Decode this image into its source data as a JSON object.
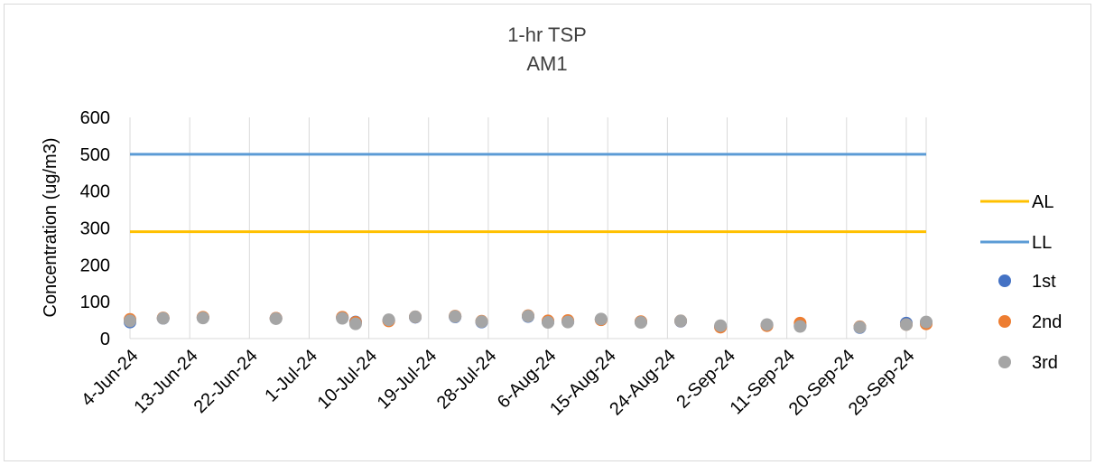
{
  "chart_data": {
    "type": "scatter",
    "title": "1-hr TSP",
    "subtitle": "AM1",
    "xlabel": "",
    "ylabel": "Concentration (ug/m3)",
    "ylim": [
      0,
      600
    ],
    "yticks": [
      0,
      100,
      200,
      300,
      400,
      500,
      600
    ],
    "xlim": [
      "2024-06-04",
      "2024-10-02"
    ],
    "xtick_labels": [
      "4-Jun-24",
      "13-Jun-24",
      "22-Jun-24",
      "1-Jul-24",
      "10-Jul-24",
      "19-Jul-24",
      "28-Jul-24",
      "6-Aug-24",
      "15-Aug-24",
      "24-Aug-24",
      "2-Sep-24",
      "11-Sep-24",
      "20-Sep-24",
      "29-Sep-24"
    ],
    "xtick_dates": [
      "2024-06-04",
      "2024-06-13",
      "2024-06-22",
      "2024-07-01",
      "2024-07-10",
      "2024-07-19",
      "2024-07-28",
      "2024-08-06",
      "2024-08-15",
      "2024-08-24",
      "2024-09-02",
      "2024-09-11",
      "2024-09-20",
      "2024-09-29"
    ],
    "grid": "vertical",
    "legend_position": "right",
    "lines": [
      {
        "name": "AL",
        "value": 290,
        "color": "#FFC000"
      },
      {
        "name": "LL",
        "value": 500,
        "color": "#5B9BD5"
      }
    ],
    "dates": [
      "2024-06-04",
      "2024-06-09",
      "2024-06-15",
      "2024-06-26",
      "2024-07-06",
      "2024-07-08",
      "2024-07-13",
      "2024-07-17",
      "2024-07-23",
      "2024-07-27",
      "2024-08-03",
      "2024-08-06",
      "2024-08-09",
      "2024-08-14",
      "2024-08-20",
      "2024-08-26",
      "2024-09-01",
      "2024-09-08",
      "2024-09-13",
      "2024-09-22",
      "2024-09-29",
      "2024-10-02"
    ],
    "series": [
      {
        "name": "1st",
        "color": "#4472C4",
        "values": [
          45,
          55,
          57,
          55,
          57,
          45,
          49,
          58,
          59,
          45,
          60,
          45,
          46,
          52,
          45,
          47,
          32,
          37,
          35,
          30,
          42,
          44
        ]
      },
      {
        "name": "2nd",
        "color": "#ED7D31",
        "values": [
          52,
          56,
          58,
          55,
          58,
          44,
          48,
          59,
          61,
          47,
          62,
          48,
          49,
          51,
          46,
          48,
          31,
          35,
          42,
          32,
          38,
          40
        ]
      },
      {
        "name": "3rd",
        "color": "#A5A5A5",
        "values": [
          48,
          55,
          56,
          54,
          55,
          40,
          51,
          59,
          60,
          46,
          61,
          44,
          45,
          53,
          44,
          48,
          35,
          38,
          33,
          31,
          38,
          45
        ]
      }
    ]
  }
}
